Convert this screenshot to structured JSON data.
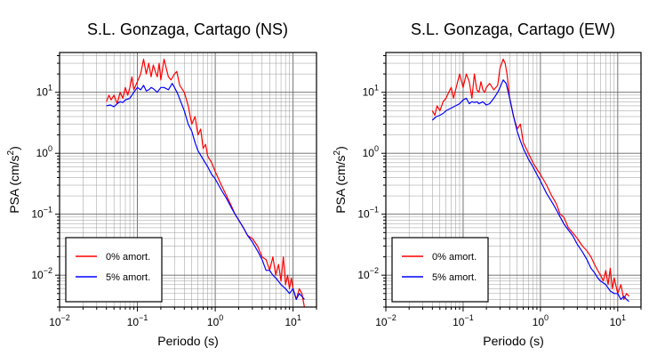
{
  "chart_data": [
    {
      "type": "line",
      "title": "S.L. Gonzaga, Cartago (NS)",
      "xlabel": "Periodo (s)",
      "ylabel": "PSA (cm/s²)",
      "x_scale": "log",
      "y_scale": "log",
      "xlim": [
        0.01,
        20
      ],
      "ylim": [
        0.003,
        45
      ],
      "grid": true,
      "legend_position": "bottom-left",
      "x_ticks": [
        {
          "value": 0.01,
          "base": "10",
          "exp": "−2"
        },
        {
          "value": 0.1,
          "base": "10",
          "exp": "−1"
        },
        {
          "value": 1,
          "base": "10",
          "exp": "0"
        },
        {
          "value": 10,
          "base": "10",
          "exp": "1"
        }
      ],
      "y_ticks": [
        {
          "value": 0.01,
          "base": "10",
          "exp": "−2"
        },
        {
          "value": 0.1,
          "base": "10",
          "exp": "−1"
        },
        {
          "value": 1,
          "base": "10",
          "exp": "0"
        },
        {
          "value": 10,
          "base": "10",
          "exp": "1"
        }
      ],
      "series": [
        {
          "name": "0% amort.",
          "color": "#ff0000",
          "x": [
            0.04,
            0.043,
            0.046,
            0.05,
            0.055,
            0.06,
            0.065,
            0.07,
            0.075,
            0.08,
            0.085,
            0.09,
            0.1,
            0.11,
            0.12,
            0.13,
            0.14,
            0.15,
            0.16,
            0.17,
            0.18,
            0.19,
            0.2,
            0.22,
            0.25,
            0.27,
            0.3,
            0.32,
            0.35,
            0.4,
            0.45,
            0.5,
            0.55,
            0.6,
            0.65,
            0.7,
            0.75,
            0.8,
            0.9,
            1.0,
            1.2,
            1.4,
            1.6,
            1.8,
            2.0,
            2.3,
            2.6,
            3.0,
            3.5,
            4.0,
            4.5,
            5.0,
            5.5,
            6.0,
            6.5,
            7.0,
            7.5,
            8.0,
            8.5,
            9.0,
            9.5,
            10.0,
            11.0,
            12.0,
            13.0,
            14.0
          ],
          "y": [
            7,
            9,
            7.5,
            9,
            6.5,
            10,
            8,
            12,
            9,
            12,
            18,
            11,
            15,
            20,
            35,
            20,
            30,
            18,
            28,
            22,
            18,
            30,
            16,
            35,
            18,
            16,
            20,
            22,
            13,
            10,
            6,
            3,
            4,
            2,
            2.5,
            1.2,
            1.4,
            0.9,
            0.7,
            0.5,
            0.3,
            0.2,
            0.14,
            0.1,
            0.08,
            0.06,
            0.045,
            0.04,
            0.03,
            0.02,
            0.018,
            0.012,
            0.02,
            0.01,
            0.015,
            0.008,
            0.02,
            0.007,
            0.01,
            0.006,
            0.009,
            0.006,
            0.004,
            0.006,
            0.005,
            0.003
          ]
        },
        {
          "name": "5% amort.",
          "color": "#0000ff",
          "x": [
            0.04,
            0.045,
            0.05,
            0.055,
            0.06,
            0.065,
            0.07,
            0.08,
            0.09,
            0.1,
            0.11,
            0.12,
            0.13,
            0.14,
            0.15,
            0.16,
            0.18,
            0.2,
            0.22,
            0.25,
            0.28,
            0.3,
            0.33,
            0.36,
            0.4,
            0.45,
            0.5,
            0.55,
            0.6,
            0.7,
            0.8,
            0.9,
            1.0,
            1.2,
            1.4,
            1.6,
            1.8,
            2.0,
            2.3,
            2.6,
            3.0,
            3.5,
            4.0,
            4.5,
            5.0,
            5.5,
            6.0,
            7.0,
            8.0,
            9.0,
            10.0,
            11.0,
            12.0,
            13.0,
            14.0
          ],
          "y": [
            6,
            6.2,
            5.8,
            6.5,
            7,
            6.8,
            7.5,
            8,
            10,
            12,
            11,
            13,
            10.5,
            11,
            12,
            11.5,
            10,
            12,
            12,
            11,
            14,
            12,
            9.5,
            7,
            5,
            3,
            2.3,
            1.5,
            1.1,
            0.8,
            0.6,
            0.45,
            0.38,
            0.25,
            0.18,
            0.13,
            0.1,
            0.08,
            0.06,
            0.045,
            0.035,
            0.025,
            0.018,
            0.012,
            0.012,
            0.01,
            0.009,
            0.007,
            0.006,
            0.005,
            0.006,
            0.004,
            0.005,
            0.0045,
            0.004
          ]
        }
      ]
    },
    {
      "type": "line",
      "title": "S.L. Gonzaga, Cartago (EW)",
      "xlabel": "Periodo (s)",
      "ylabel": "PSA (cm/s²)",
      "x_scale": "log",
      "y_scale": "log",
      "xlim": [
        0.01,
        20
      ],
      "ylim": [
        0.003,
        45
      ],
      "grid": true,
      "legend_position": "bottom-left",
      "x_ticks": [
        {
          "value": 0.01,
          "base": "10",
          "exp": "−2"
        },
        {
          "value": 0.1,
          "base": "10",
          "exp": "−1"
        },
        {
          "value": 1,
          "base": "10",
          "exp": "0"
        },
        {
          "value": 10,
          "base": "10",
          "exp": "1"
        }
      ],
      "y_ticks": [
        {
          "value": 0.01,
          "base": "10",
          "exp": "−2"
        },
        {
          "value": 0.1,
          "base": "10",
          "exp": "−1"
        },
        {
          "value": 1,
          "base": "10",
          "exp": "0"
        },
        {
          "value": 10,
          "base": "10",
          "exp": "1"
        }
      ],
      "series": [
        {
          "name": "0% amort.",
          "color": "#ff0000",
          "x": [
            0.04,
            0.043,
            0.046,
            0.05,
            0.055,
            0.06,
            0.065,
            0.07,
            0.075,
            0.08,
            0.09,
            0.1,
            0.11,
            0.12,
            0.13,
            0.14,
            0.15,
            0.16,
            0.17,
            0.18,
            0.19,
            0.2,
            0.22,
            0.25,
            0.28,
            0.3,
            0.33,
            0.35,
            0.37,
            0.4,
            0.45,
            0.5,
            0.55,
            0.6,
            0.7,
            0.8,
            0.9,
            1.0,
            1.2,
            1.4,
            1.6,
            1.8,
            2.0,
            2.3,
            2.6,
            3.0,
            3.5,
            4.0,
            4.5,
            5.0,
            5.5,
            6.0,
            6.5,
            7.0,
            7.5,
            8.0,
            8.5,
            9.0,
            10.0,
            11.0,
            12.0,
            13.0,
            14.0
          ],
          "y": [
            5,
            4.2,
            6,
            5,
            7,
            8,
            10,
            12,
            8,
            11,
            20,
            12,
            20,
            15,
            8,
            20,
            11,
            10,
            15,
            11,
            10,
            12,
            14,
            11,
            13,
            25,
            35,
            30,
            20,
            8,
            4,
            2.5,
            3,
            1.5,
            1.0,
            0.7,
            0.55,
            0.45,
            0.3,
            0.2,
            0.15,
            0.1,
            0.09,
            0.06,
            0.05,
            0.04,
            0.03,
            0.025,
            0.02,
            0.015,
            0.012,
            0.01,
            0.008,
            0.012,
            0.007,
            0.013,
            0.006,
            0.009,
            0.005,
            0.007,
            0.004,
            0.005,
            0.0045
          ]
        },
        {
          "name": "5% amort.",
          "color": "#0000ff",
          "x": [
            0.04,
            0.045,
            0.05,
            0.055,
            0.06,
            0.07,
            0.08,
            0.09,
            0.1,
            0.11,
            0.12,
            0.13,
            0.14,
            0.15,
            0.16,
            0.18,
            0.2,
            0.22,
            0.25,
            0.28,
            0.3,
            0.33,
            0.36,
            0.4,
            0.45,
            0.5,
            0.55,
            0.6,
            0.7,
            0.8,
            0.9,
            1.0,
            1.2,
            1.4,
            1.6,
            1.8,
            2.0,
            2.3,
            2.6,
            3.0,
            3.5,
            4.0,
            4.5,
            5.0,
            5.5,
            6.0,
            7.0,
            8.0,
            9.0,
            10.0,
            11.0,
            12.0,
            13.0,
            14.0
          ],
          "y": [
            3.5,
            4,
            4.2,
            4.5,
            5,
            5.5,
            6,
            6.5,
            7.5,
            8,
            6.5,
            7,
            6.8,
            7,
            6.5,
            7,
            6.2,
            6.5,
            8,
            10,
            12,
            16,
            14,
            8,
            4,
            2.3,
            1.6,
            1.2,
            0.8,
            0.6,
            0.45,
            0.35,
            0.22,
            0.16,
            0.12,
            0.09,
            0.07,
            0.055,
            0.045,
            0.032,
            0.024,
            0.018,
            0.013,
            0.011,
            0.009,
            0.008,
            0.007,
            0.0055,
            0.005,
            0.005,
            0.004,
            0.0045,
            0.004,
            0.0037
          ]
        }
      ]
    }
  ]
}
